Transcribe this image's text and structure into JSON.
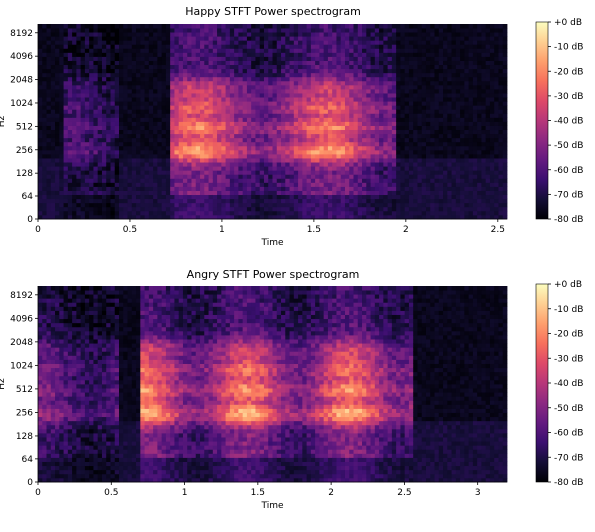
{
  "chart_data": [
    {
      "type": "heatmap",
      "title": "Happy STFT Power spectrogram",
      "xlabel": "Time",
      "ylabel": "Hz",
      "x_ticks": [
        "0",
        "0.5",
        "1",
        "1.5",
        "2",
        "2.5"
      ],
      "y_ticks": [
        "0",
        "64",
        "128",
        "256",
        "512",
        "1024",
        "2048",
        "4096",
        "8192"
      ],
      "xlim": [
        0,
        2.55
      ],
      "colorbar_ticks": [
        "+0 dB",
        "-10 dB",
        "-20 dB",
        "-30 dB",
        "-40 dB",
        "-50 dB",
        "-60 dB",
        "-70 dB",
        "-80 dB"
      ],
      "colorbar_range": [
        -80,
        0
      ],
      "colormap": [
        "#000004",
        "#140e36",
        "#3b0f70",
        "#641a80",
        "#8c2981",
        "#b73779",
        "#de4968",
        "#f7705c",
        "#fe9f6d",
        "#fecf92",
        "#fcfdbf"
      ],
      "segments": [
        {
          "start": 0.72,
          "end": 1.95,
          "level": 0.85
        },
        {
          "start": 0.15,
          "end": 0.45,
          "level": 0.3
        }
      ]
    },
    {
      "type": "heatmap",
      "title": "Angry STFT Power spectrogram",
      "xlabel": "Time",
      "ylabel": "Hz",
      "x_ticks": [
        "0",
        "0.5",
        "1",
        "1.5",
        "2",
        "2.5",
        "3"
      ],
      "y_ticks": [
        "0",
        "64",
        "128",
        "256",
        "512",
        "1024",
        "2048",
        "4096",
        "8192"
      ],
      "xlim": [
        0,
        3.2
      ],
      "colorbar_ticks": [
        "+0 dB",
        "-10 dB",
        "-20 dB",
        "-30 dB",
        "-40 dB",
        "-50 dB",
        "-60 dB",
        "-70 dB",
        "-80 dB"
      ],
      "colorbar_range": [
        -80,
        0
      ],
      "colormap": [
        "#000004",
        "#140e36",
        "#3b0f70",
        "#641a80",
        "#8c2981",
        "#b73779",
        "#de4968",
        "#f7705c",
        "#fe9f6d",
        "#fecf92",
        "#fcfdbf"
      ],
      "segments": [
        {
          "start": 0.0,
          "end": 0.55,
          "level": 0.45
        },
        {
          "start": 0.7,
          "end": 2.55,
          "level": 0.9
        }
      ]
    }
  ]
}
